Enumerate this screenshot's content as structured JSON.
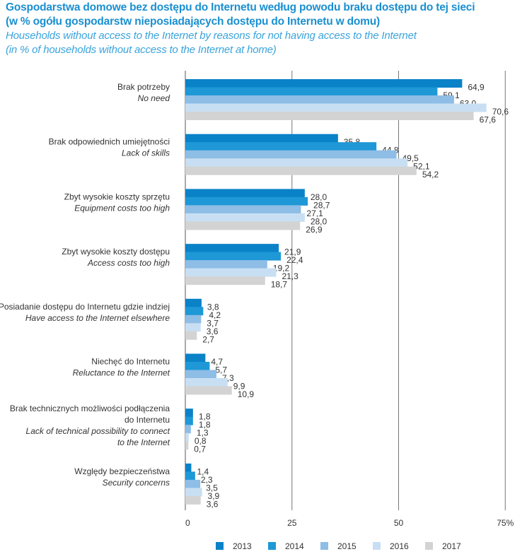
{
  "header": {
    "title_pl_1": "Gospodarstwa domowe bez dostępu do Internetu według powodu braku dostępu do tej sieci",
    "title_pl_2": "(w % ogółu gospodarstw nieposiadających dostępu do Internetu w domu)",
    "title_en_1": "Households without access to the Internet by reasons for not having access to the Internet",
    "title_en_2": "(in % of households without access to the Internet at home)"
  },
  "chart_data": {
    "type": "bar",
    "orientation": "horizontal",
    "categories": [
      {
        "pl": [
          "Brak potrzeby"
        ],
        "en": [
          "No need"
        ]
      },
      {
        "pl": [
          "Brak odpowiednich umiejętności"
        ],
        "en": [
          "Lack of skills"
        ]
      },
      {
        "pl": [
          "Zbyt wysokie koszty sprzętu"
        ],
        "en": [
          "Equipment costs too high"
        ]
      },
      {
        "pl": [
          "Zbyt wysokie koszty dostępu"
        ],
        "en": [
          "Access costs too high"
        ]
      },
      {
        "pl": [
          "Posiadanie dostępu do Internetu gdzie indziej"
        ],
        "en": [
          "Have access to the Internet elsewhere"
        ]
      },
      {
        "pl": [
          "Niechęć do Internetu"
        ],
        "en": [
          "Reluctance to the Internet"
        ]
      },
      {
        "pl": [
          "Brak technicznych możliwości podłączenia",
          "do Internetu"
        ],
        "en": [
          "Lack of technical possibility to connect",
          "to the Internet"
        ]
      },
      {
        "pl": [
          "Względy bezpieczeństwa"
        ],
        "en": [
          "Security concerns"
        ]
      }
    ],
    "series": [
      {
        "name": "2013",
        "color": "#0a82c8",
        "values": [
          64.9,
          35.8,
          28.0,
          21.9,
          3.8,
          4.7,
          1.8,
          1.4
        ]
      },
      {
        "name": "2014",
        "color": "#1e98d6",
        "values": [
          59.1,
          44.8,
          28.7,
          22.4,
          4.2,
          5.7,
          1.8,
          2.3
        ]
      },
      {
        "name": "2015",
        "color": "#8ebde6",
        "values": [
          63.0,
          49.5,
          27.1,
          19.2,
          3.7,
          7.3,
          1.3,
          3.5
        ]
      },
      {
        "name": "2016",
        "color": "#c8dff3",
        "values": [
          70.6,
          52.1,
          28.0,
          21.3,
          3.6,
          9.9,
          0.8,
          3.9
        ]
      },
      {
        "name": "2017",
        "color": "#d3d3d3",
        "values": [
          67.6,
          54.2,
          26.9,
          18.7,
          2.7,
          10.9,
          0.7,
          3.6
        ]
      }
    ],
    "xlim": [
      0,
      75
    ],
    "xticks": [
      "0",
      "25",
      "50",
      "75%"
    ],
    "grid": true,
    "legend": "bottom",
    "decimal_separator": ","
  }
}
